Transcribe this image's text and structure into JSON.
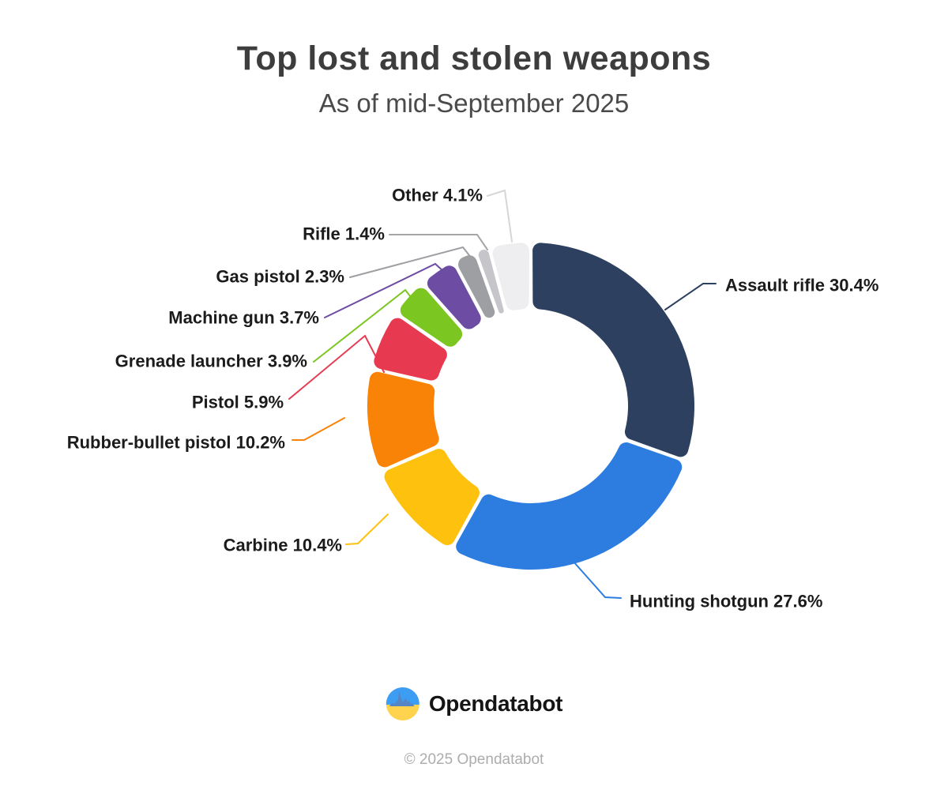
{
  "header": {
    "title": "Top lost and stolen weapons",
    "subtitle": "As of mid-September 2025"
  },
  "chart_data": {
    "type": "pie",
    "variant": "donut",
    "direction": "clockwise",
    "start_angle_deg": 0,
    "inner_radius_ratio": 0.59,
    "label_format": "{label} {value}%",
    "slices": [
      {
        "label": "Assault rifle",
        "value": 30.4,
        "color": "#2d4060"
      },
      {
        "label": "Hunting shotgun",
        "value": 27.6,
        "color": "#2d7de1"
      },
      {
        "label": "Carbine",
        "value": 10.4,
        "color": "#fec10d"
      },
      {
        "label": "Rubber-bullet pistol",
        "value": 10.2,
        "color": "#f98306"
      },
      {
        "label": "Pistol",
        "value": 5.9,
        "color": "#e73a51"
      },
      {
        "label": "Grenade launcher",
        "value": 3.9,
        "color": "#7cc621"
      },
      {
        "label": "Machine gun",
        "value": 3.7,
        "color": "#6d4ca3"
      },
      {
        "label": "Gas pistol",
        "value": 2.3,
        "color": "#9e9fa3"
      },
      {
        "label": "Rifle",
        "value": 1.4,
        "color": "#c6c6ca",
        "line_color": "#a6a6a6"
      },
      {
        "label": "Other",
        "value": 4.1,
        "color": "#eeeef0",
        "line_color": "#d6d6d6"
      }
    ]
  },
  "footer": {
    "brand": "Opendatabot",
    "copyright": "© 2025 Opendatabot",
    "logo_colors": {
      "blue": "#3d9df3",
      "yellow": "#ffd34e",
      "skyline": "#5585c5"
    }
  }
}
